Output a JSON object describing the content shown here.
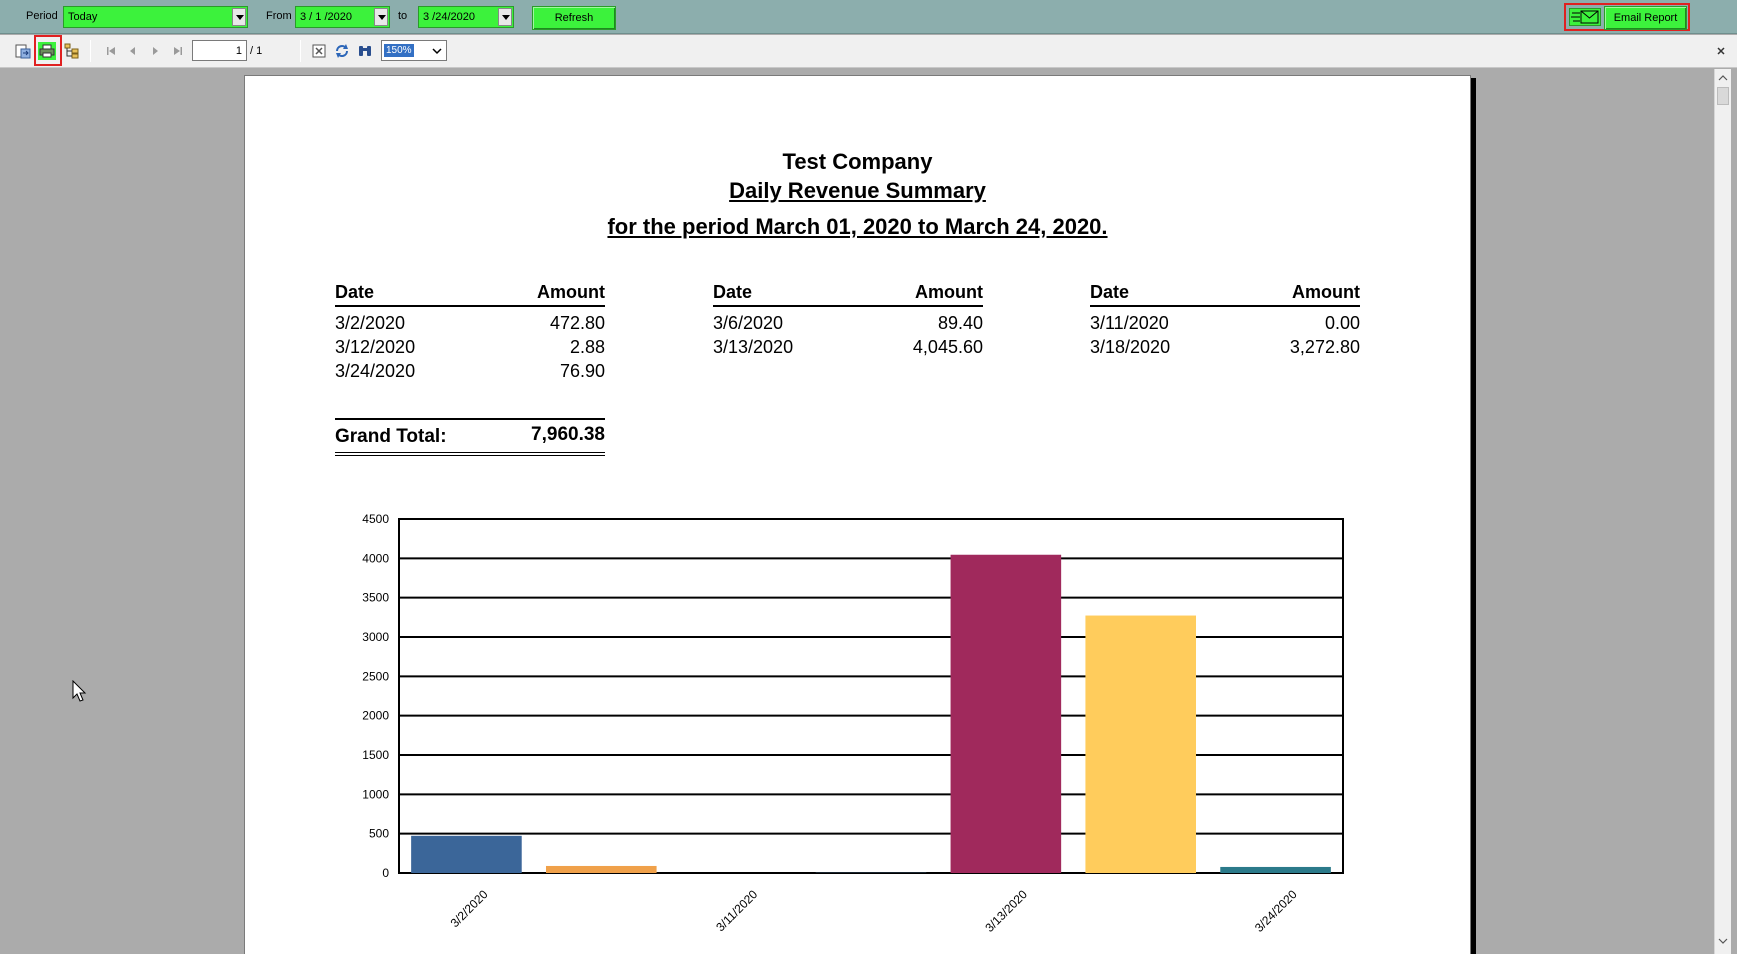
{
  "filter_bar": {
    "period_label": "Period",
    "period_value": "Today",
    "from_label": "From",
    "from_value": "3 / 1 /2020",
    "to_label": "to",
    "to_value": "3 /24/2020",
    "refresh_label": "Refresh",
    "email_label": "Email Report",
    "accent_color": "#3cf23c"
  },
  "toolbar": {
    "page_current": "1",
    "page_total": "/ 1",
    "zoom_value": "150%"
  },
  "report": {
    "company": "Test Company",
    "title": "Daily Revenue Summary",
    "period_text": "for the period March 01, 2020 to March 24, 2020.",
    "date_header": "Date",
    "amount_header": "Amount",
    "columns": [
      [
        {
          "date": "3/2/2020",
          "amount": "472.80"
        },
        {
          "date": "3/12/2020",
          "amount": "2.88"
        },
        {
          "date": "3/24/2020",
          "amount": "76.90"
        }
      ],
      [
        {
          "date": "3/6/2020",
          "amount": "89.40"
        },
        {
          "date": "3/13/2020",
          "amount": "4,045.60"
        }
      ],
      [
        {
          "date": "3/11/2020",
          "amount": "0.00"
        },
        {
          "date": "3/18/2020",
          "amount": "3,272.80"
        }
      ]
    ],
    "grand_total_label": "Grand Total:",
    "grand_total_value": "7,960.38"
  },
  "chart_data": {
    "type": "bar",
    "categories": [
      "3/2/2020",
      "3/6/2020",
      "3/11/2020",
      "3/12/2020",
      "3/13/2020",
      "3/18/2020",
      "3/24/2020"
    ],
    "values": [
      472.8,
      89.4,
      0.0,
      2.88,
      4045.6,
      3272.8,
      76.9
    ],
    "colors": [
      "#3b6699",
      "#f0a14a",
      "#cccccc",
      "#6aa0cc",
      "#a0295c",
      "#ffcc5c",
      "#2b7a8a"
    ],
    "x_tick_labels": [
      "3/2/2020",
      "3/11/2020",
      "3/13/2020",
      "3/24/2020"
    ],
    "y_ticks": [
      0,
      500,
      1000,
      1500,
      2000,
      2500,
      3000,
      3500,
      4000,
      4500
    ],
    "ylim": [
      0,
      4500
    ],
    "grid": true,
    "legend": "none"
  }
}
